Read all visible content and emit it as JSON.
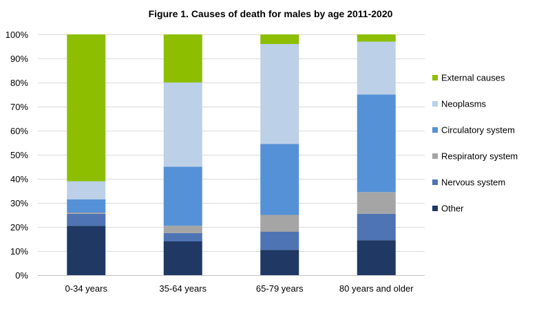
{
  "chart_data": {
    "type": "bar",
    "stacked": true,
    "title": "Figure 1. Causes of death for males by age 2011-2020",
    "xlabel": "",
    "ylabel": "",
    "ylim": [
      0,
      100
    ],
    "yticks": [
      "0%",
      "10%",
      "20%",
      "30%",
      "40%",
      "50%",
      "60%",
      "70%",
      "80%",
      "90%",
      "100%"
    ],
    "categories": [
      "0-34 years",
      "35-64 years",
      "65-79 years",
      "80 years and older"
    ],
    "series": [
      {
        "name": "Other",
        "color": "#1f3864",
        "values": [
          20.5,
          14,
          10.5,
          14.5
        ]
      },
      {
        "name": "Nervous system",
        "color": "#4f74b4",
        "values": [
          5,
          3.5,
          7.5,
          11
        ]
      },
      {
        "name": "Respiratory system",
        "color": "#a5a5a5",
        "values": [
          0.5,
          3,
          7,
          9
        ]
      },
      {
        "name": "Circulatory system",
        "color": "#5591d6",
        "values": [
          5.5,
          24.5,
          29.5,
          40.5
        ]
      },
      {
        "name": "Neoplasms",
        "color": "#bcd0e8",
        "values": [
          7.5,
          35,
          41.5,
          22
        ]
      },
      {
        "name": "External causes",
        "color": "#8dbf00",
        "values": [
          61,
          20,
          4,
          3
        ]
      }
    ],
    "legend_position": "right",
    "legend_order": [
      "External causes",
      "Neoplasms",
      "Circulatory system",
      "Respiratory system",
      "Nervous system",
      "Other"
    ],
    "grid": true
  }
}
